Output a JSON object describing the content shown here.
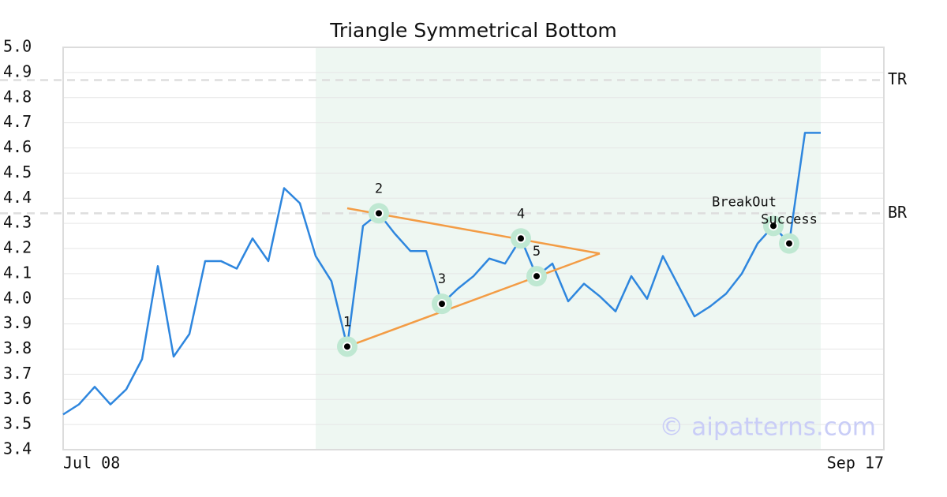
{
  "chart_data": {
    "type": "line",
    "title": "Triangle Symmetrical Bottom",
    "categories": [
      "Jul 08",
      null,
      null,
      null,
      null,
      null,
      null,
      null,
      null,
      null,
      null,
      null,
      null,
      null,
      null,
      null,
      null,
      null,
      null,
      null,
      null,
      null,
      null,
      null,
      null,
      null,
      null,
      null,
      null,
      null,
      null,
      null,
      null,
      null,
      null,
      null,
      null,
      null,
      null,
      null,
      null,
      null,
      null,
      null,
      null,
      null,
      null,
      null,
      "Sep 17"
    ],
    "values": [
      3.54,
      3.58,
      3.65,
      3.58,
      3.64,
      3.76,
      4.13,
      3.77,
      3.86,
      4.15,
      4.15,
      4.12,
      4.24,
      4.15,
      4.44,
      4.38,
      4.17,
      4.07,
      3.81,
      4.29,
      4.34,
      4.26,
      4.19,
      4.19,
      3.98,
      4.04,
      4.09,
      4.16,
      4.14,
      4.24,
      4.09,
      4.14,
      3.99,
      4.06,
      4.01,
      3.95,
      4.09,
      4.0,
      4.17,
      4.05,
      3.93,
      3.97,
      4.02,
      4.1,
      4.22,
      4.29,
      4.22,
      4.66,
      4.66
    ],
    "color": "#2e86de",
    "ylim": [
      3.4,
      5.0
    ],
    "yticks": [
      3.4,
      3.5,
      3.6,
      3.7,
      3.8,
      3.9,
      {
        "value": 4,
        "label": "4.0"
      },
      4.1,
      4.2,
      4.3,
      4.4,
      4.5,
      4.6,
      4.7,
      4.8,
      4.9,
      {
        "value": 5,
        "label": "5.0"
      }
    ],
    "grid": true,
    "shaded_range": [
      16,
      48
    ],
    "reference_lines": [
      {
        "label": "TR",
        "value": 4.87
      },
      {
        "label": "BR",
        "value": 4.34
      }
    ],
    "trendlines": [
      {
        "color": "#f39c45",
        "points": [
          [
            18,
            4.36
          ],
          [
            34,
            4.18
          ]
        ]
      },
      {
        "color": "#f39c45",
        "points": [
          [
            18,
            3.81
          ],
          [
            34,
            4.18
          ]
        ]
      }
    ],
    "pattern_points": [
      {
        "label": "1",
        "index": 18,
        "value": 3.81
      },
      {
        "label": "2",
        "index": 20,
        "value": 4.34
      },
      {
        "label": "3",
        "index": 24,
        "value": 3.98
      },
      {
        "label": "4",
        "index": 29,
        "value": 4.24
      },
      {
        "label": "5",
        "index": 30,
        "value": 4.09
      },
      {
        "label": "BreakOut",
        "index": 45,
        "value": 4.29
      },
      {
        "label": "Success",
        "index": 46,
        "value": 4.22
      }
    ],
    "watermark": "© aipatterns.com"
  }
}
